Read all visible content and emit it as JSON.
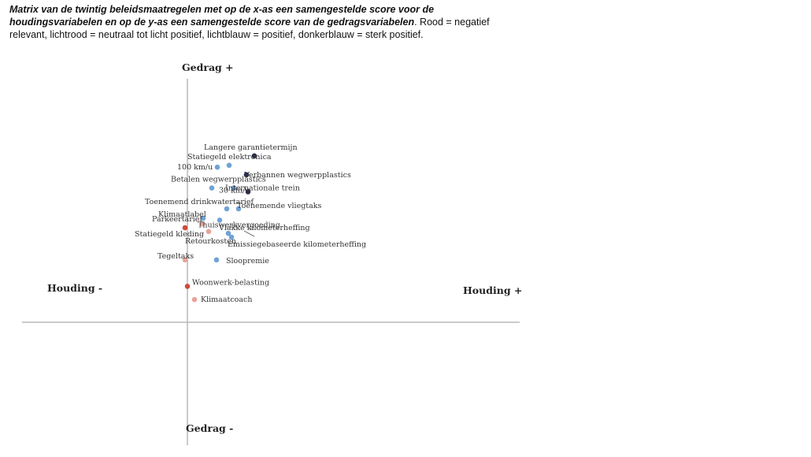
{
  "caption": {
    "bold": "Matrix van de twintig beleidsmaatregelen met op de x-as een samengestelde score voor de houdingsvariabelen en op de y-as een samengestelde score van de gedragsvariabelen",
    "rest": ". Rood = negatief relevant, lichtrood = neutraal tot licht positief, lichtblauw = positief, donkerblauw = sterk positief."
  },
  "colors": {
    "red": "#cc4a3e",
    "lightred": "#e8a39b",
    "lightblue": "#6fa3d6",
    "darkblue": "#2a2d52",
    "axis": "#b8b8b8"
  },
  "chart_data": {
    "type": "scatter",
    "title": "Matrix van de twintig beleidsmaatregelen",
    "xlabel_neg": "Houding -",
    "xlabel_pos": "Houding +",
    "ylabel_pos": "Gedrag +",
    "ylabel_neg": "Gedrag -",
    "xlim": [
      -1,
      2
    ],
    "ylim": [
      -1,
      2
    ],
    "points": [
      {
        "label": "Langere garantietermijn",
        "x": 0.85,
        "y": 0.88,
        "category": "darkblue"
      },
      {
        "label": "Statiegeld elektronica",
        "x": 0.53,
        "y": 0.83,
        "category": "lightblue"
      },
      {
        "label": "100 km/u",
        "x": 0.38,
        "y": 0.82,
        "category": "lightblue"
      },
      {
        "label": "Verbannen wegwerpplastics",
        "x": 0.75,
        "y": 0.78,
        "category": "darkblue"
      },
      {
        "label": "Betalen wegwerpplastics",
        "x": 0.59,
        "y": 0.71,
        "category": "lightblue"
      },
      {
        "label": "Internationale trein",
        "x": 0.77,
        "y": 0.69,
        "category": "darkblue"
      },
      {
        "label": "30 km/u",
        "x": 0.31,
        "y": 0.71,
        "category": "lightblue"
      },
      {
        "label": "Toenemend drinkwatertarief",
        "x": 0.5,
        "y": 0.6,
        "category": "lightblue"
      },
      {
        "label": "Toenemende vliegtaks",
        "x": 0.65,
        "y": 0.6,
        "category": "lightblue"
      },
      {
        "label": "Klimaatlabel",
        "x": 0.2,
        "y": 0.55,
        "category": "lightblue"
      },
      {
        "label": "Parkeertarief",
        "x": 0.19,
        "y": 0.52,
        "category": "lightred"
      },
      {
        "label": "Thuiswerkvergoeding",
        "x": 0.41,
        "y": 0.54,
        "category": "lightblue"
      },
      {
        "label": "Statiegeld kleding",
        "x": -0.03,
        "y": 0.5,
        "category": "red"
      },
      {
        "label": "Retourkosten",
        "x": 0.27,
        "y": 0.48,
        "category": "lightred"
      },
      {
        "label": "Vlakke kilometerheffing",
        "x": 0.52,
        "y": 0.47,
        "category": "lightblue"
      },
      {
        "label": "Emissiegebaseerde kilometerheffing",
        "x": 0.56,
        "y": 0.45,
        "category": "lightblue"
      },
      {
        "label": "Tegeltaks",
        "x": -0.03,
        "y": 0.33,
        "category": "lightred"
      },
      {
        "label": "Sloopremie",
        "x": 0.37,
        "y": 0.33,
        "category": "lightblue"
      },
      {
        "label": "Woonwerk-belasting",
        "x": 0.0,
        "y": 0.19,
        "category": "red"
      },
      {
        "label": "Klimaatcoach",
        "x": 0.09,
        "y": 0.12,
        "category": "lightred"
      }
    ]
  }
}
